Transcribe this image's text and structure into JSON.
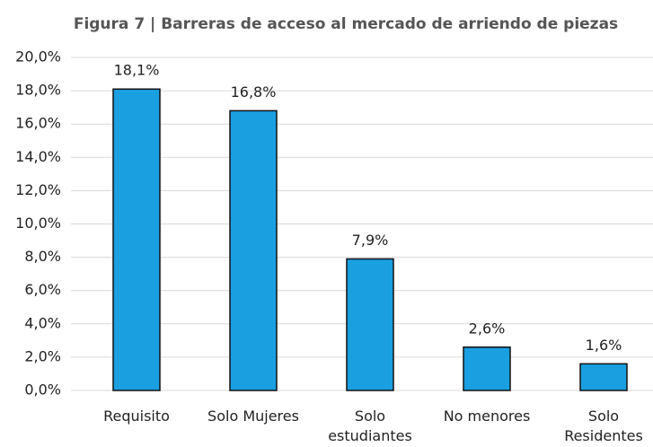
{
  "chart_data": {
    "type": "bar",
    "title": "Figura 7 | Barreras de acceso al mercado de arriendo de piezas",
    "categories": [
      "Requisito",
      "Solo Mujeres",
      "Solo\nestudiantes",
      "No menores",
      "Solo\nResidentes"
    ],
    "values": [
      18.1,
      16.8,
      7.9,
      2.6,
      1.6
    ],
    "value_labels": [
      "18,1%",
      "16,8%",
      "7,9%",
      "2,6%",
      "1,6%"
    ],
    "color": "#1a9fe0",
    "ylim": [
      0,
      20
    ],
    "yticks": [
      {
        "value": 0,
        "label": "0,0%"
      },
      {
        "value": 2,
        "label": "2,0%"
      },
      {
        "value": 4,
        "label": "4,0%"
      },
      {
        "value": 6,
        "label": "6,0%"
      },
      {
        "value": 8,
        "label": "8,0%"
      },
      {
        "value": 10,
        "label": "10,0%"
      },
      {
        "value": 12,
        "label": "12,0%"
      },
      {
        "value": 14,
        "label": "14,0%"
      },
      {
        "value": 16,
        "label": "16,0%"
      },
      {
        "value": 18,
        "label": "18,0%"
      },
      {
        "value": 20,
        "label": "20,0%"
      }
    ],
    "grid": true
  }
}
